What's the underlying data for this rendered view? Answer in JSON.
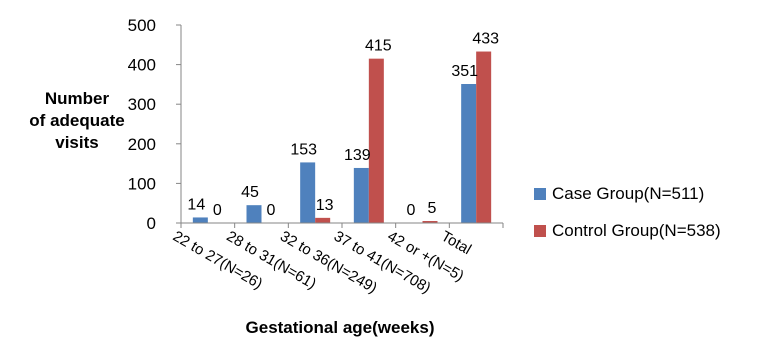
{
  "chart_data": {
    "type": "bar",
    "categories": [
      "22 to 27(N=26)",
      "28 to 31(N=61)",
      "32 to 36(N=249)",
      "37 to 41(N=708)",
      "42 or +(N=5)",
      "Total"
    ],
    "series": [
      {
        "name": "Case Group(N=511)",
        "values": [
          14,
          45,
          153,
          139,
          0,
          351
        ],
        "color": "#4F81BD"
      },
      {
        "name": "Control Group(N=538)",
        "values": [
          0,
          0,
          13,
          415,
          5,
          433
        ],
        "color": "#C0504D"
      }
    ],
    "ylabel_lines": [
      "Number",
      "of adequate",
      "visits"
    ],
    "xlabel": "Gestational age(weeks)",
    "ylim": [
      0,
      500
    ],
    "yticks": [
      0,
      100,
      200,
      300,
      400,
      500
    ],
    "grid": false,
    "legend_position": "right"
  }
}
